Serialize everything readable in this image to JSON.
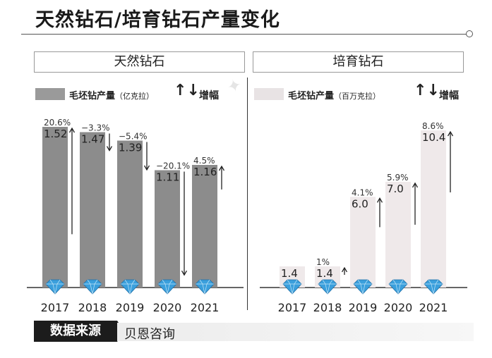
{
  "title": "天然钻石/培育钻石产量变化",
  "source": {
    "label": "数据来源",
    "value": "贝恩咨询"
  },
  "legend": {
    "increase_symbol": "↑",
    "decrease_symbol": "↓",
    "change_label": "增幅"
  },
  "colors": {
    "natural_bar": "#8c8c8c",
    "natural_swatch": "#9a9a9a",
    "lab_bar": "#efe9ea",
    "lab_swatch": "#e8e3e4",
    "diamond": "#3a9fdc",
    "axis": "#333333"
  },
  "chart_data": [
    {
      "type": "bar",
      "title": "天然钻石",
      "series_label": "毛坯钻产量",
      "unit": "（亿克拉）",
      "categories": [
        "2017",
        "2018",
        "2019",
        "2020",
        "2021"
      ],
      "values": [
        1.52,
        1.47,
        1.39,
        1.11,
        1.16
      ],
      "value_labels": [
        "1.52",
        "1.47",
        "1.39",
        "1.11",
        "1.16"
      ],
      "changes": [
        "20.6%",
        "−3.3%",
        "−5.4%",
        "−20.1%",
        "4.5%"
      ],
      "change_direction": [
        "up",
        "down",
        "down",
        "down",
        "up"
      ],
      "change_magnitude": [
        20.6,
        3.3,
        5.4,
        20.1,
        4.5
      ],
      "ylim": [
        0,
        1.52
      ]
    },
    {
      "type": "bar",
      "title": "培育钻石",
      "series_label": "毛坯钻产量",
      "unit": "（百万克拉）",
      "categories": [
        "2017",
        "2018",
        "2019",
        "2020",
        "2021"
      ],
      "values": [
        1.4,
        1.4,
        6.0,
        7.0,
        10.4
      ],
      "value_labels": [
        "1.4",
        "1.4",
        "6.0",
        "7.0",
        "10.4"
      ],
      "changes": [
        "",
        "1%",
        "4.1%",
        "5.9%",
        "8.6%"
      ],
      "change_direction": [
        "",
        "up",
        "up",
        "up",
        "up"
      ],
      "change_magnitude": [
        0,
        1,
        4.1,
        5.9,
        8.6
      ],
      "ylim": [
        0,
        10.4
      ]
    }
  ]
}
